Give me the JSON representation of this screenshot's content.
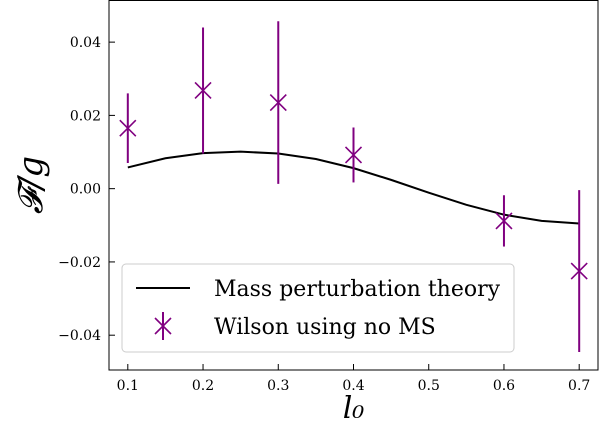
{
  "chart_data": {
    "type": "line",
    "xlabel": "l₀",
    "ylabel": "𝓕/g",
    "xlim": [
      0.075,
      0.725
    ],
    "ylim": [
      -0.0495,
      0.0515
    ],
    "xticks": [
      0.1,
      0.2,
      0.3,
      0.4,
      0.5,
      0.6,
      0.7
    ],
    "xtick_labels": [
      "0.1",
      "0.2",
      "0.3",
      "0.4",
      "0.5",
      "0.6",
      "0.7"
    ],
    "yticks": [
      -0.04,
      -0.02,
      0.0,
      0.02,
      0.04
    ],
    "ytick_labels": [
      "−0.04",
      "−0.02",
      "0.00",
      "0.02",
      "0.04"
    ],
    "grid": false,
    "legend_position": "lower-left",
    "series": [
      {
        "name": "Mass perturbation theory",
        "kind": "line",
        "color": "#000000",
        "x": [
          0.1,
          0.15,
          0.2,
          0.25,
          0.3,
          0.35,
          0.4,
          0.45,
          0.5,
          0.55,
          0.6,
          0.65,
          0.7
        ],
        "y": [
          0.0058,
          0.0083,
          0.0097,
          0.0101,
          0.0096,
          0.0081,
          0.0056,
          0.0024,
          -0.0011,
          -0.0044,
          -0.0071,
          -0.0088,
          -0.0095
        ]
      },
      {
        "name": "Wilson using no MS",
        "kind": "errorbar",
        "marker": "x",
        "color": "#800080",
        "x": [
          0.1,
          0.2,
          0.3,
          0.4,
          0.6,
          0.7
        ],
        "y": [
          0.0165,
          0.0268,
          0.0235,
          0.0092,
          -0.0088,
          -0.0225
        ],
        "yerr": [
          0.0095,
          0.0172,
          0.0222,
          0.0075,
          0.007,
          0.0221
        ]
      }
    ]
  }
}
